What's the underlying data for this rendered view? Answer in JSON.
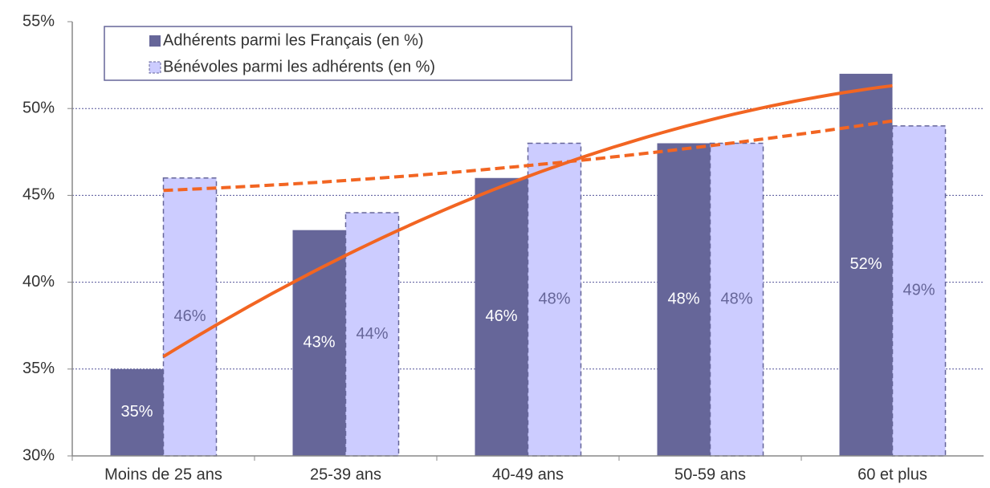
{
  "chart_data": {
    "type": "bar",
    "categories": [
      "Moins de 25 ans",
      "25-39 ans",
      "40-49 ans",
      "50-59 ans",
      "60 et plus"
    ],
    "series": [
      {
        "name": "Adhérents parmi les Français (en %)",
        "color": "#666699",
        "values": [
          35,
          43,
          46,
          48,
          52
        ],
        "value_labels": [
          "35%",
          "43%",
          "46%",
          "48%",
          "52%"
        ]
      },
      {
        "name": "Bénévoles parmi les adhérents (en %)",
        "color": "#ccccff",
        "values": [
          46,
          44,
          48,
          48,
          49
        ],
        "value_labels": [
          "46%",
          "44%",
          "48%",
          "48%",
          "49%"
        ]
      }
    ],
    "ylim": [
      30,
      55
    ],
    "yticks": [
      {
        "value": 30,
        "label": "30%"
      },
      {
        "value": 35,
        "label": "35%"
      },
      {
        "value": 40,
        "label": "40%"
      },
      {
        "value": 45,
        "label": "45%"
      },
      {
        "value": 50,
        "label": "50%"
      },
      {
        "value": 55,
        "label": "55%"
      }
    ],
    "grid": true,
    "trendline": "polynomial",
    "trendline_color": "#f26522",
    "legend": "top-left"
  }
}
